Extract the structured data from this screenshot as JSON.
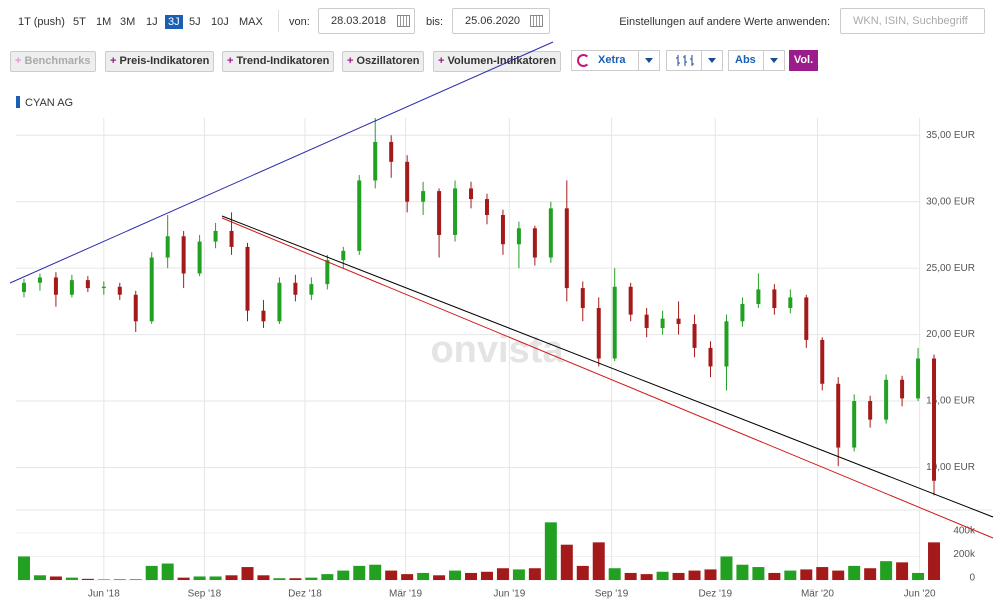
{
  "toolbar": {
    "ranges": [
      "1T (push)",
      "5T",
      "1M",
      "3M",
      "1J",
      "3J",
      "5J",
      "10J",
      "MAX"
    ],
    "active_range": "3J",
    "from_label": "von:",
    "from_date": "28.03.2018",
    "to_label": "bis:",
    "to_date": "25.06.2020",
    "apply_label": "Einstellungen auf andere Werte anwenden:",
    "search_placeholder": "WKN, ISIN, Suchbegriff",
    "buttons": [
      "Benchmarks",
      "Preis-Indikatoren",
      "Trend-Indikatoren",
      "Oszillatoren",
      "Volumen-Indikatoren"
    ],
    "exchange": "Xetra",
    "mode": "Abs",
    "volume_toggle": "Vol."
  },
  "chart_data": {
    "type": "candlestick",
    "legend": "CYAN AG",
    "watermark": "onvista",
    "up_color": "#22a022",
    "down_color": "#a41a1a",
    "legend_color": "#1a5fb4",
    "open": [
      23.2,
      23.9,
      24.3,
      23.0,
      24.1,
      23.5,
      23.6,
      23.0,
      21.0,
      25.8,
      27.4,
      24.6,
      27.0,
      27.8,
      26.6,
      21.8,
      21.0,
      23.9,
      23.0,
      23.8,
      25.6,
      26.3,
      31.6,
      34.5,
      33.0,
      30.0,
      30.8,
      27.5,
      31.0,
      30.2,
      29.0,
      26.8,
      28.0,
      25.8,
      29.5,
      23.5,
      22.0,
      18.2,
      23.6,
      21.5,
      20.5,
      21.2,
      20.8,
      19.0,
      17.6,
      21.0,
      22.3,
      23.4,
      22.0,
      22.8,
      19.6,
      16.3,
      11.5,
      15.0,
      13.6,
      16.6,
      15.2,
      18.2
    ],
    "high": [
      24.2,
      24.6,
      24.7,
      24.5,
      24.4,
      24.0,
      23.9,
      23.3,
      26.2,
      29.0,
      27.8,
      27.5,
      28.4,
      29.2,
      26.9,
      22.6,
      24.3,
      24.5,
      24.3,
      26.0,
      26.6,
      32.0,
      36.3,
      35.0,
      33.5,
      31.5,
      31.0,
      31.6,
      31.5,
      30.6,
      29.4,
      28.5,
      28.2,
      30.0,
      31.6,
      24.0,
      22.8,
      25.0,
      23.9,
      22.0,
      21.8,
      22.5,
      21.5,
      19.5,
      21.5,
      22.8,
      24.6,
      23.8,
      23.4,
      23.0,
      19.8,
      16.8,
      15.5,
      15.4,
      17.0,
      16.9,
      19.0,
      18.5
    ],
    "low": [
      22.8,
      23.3,
      22.1,
      22.8,
      23.2,
      23.0,
      22.6,
      20.2,
      20.8,
      25.0,
      23.5,
      24.4,
      26.5,
      26.0,
      21.0,
      20.5,
      20.8,
      22.5,
      22.6,
      23.4,
      25.0,
      26.0,
      31.0,
      31.8,
      29.2,
      29.0,
      25.8,
      27.0,
      29.5,
      28.3,
      26.0,
      25.0,
      25.2,
      25.4,
      22.5,
      21.0,
      17.6,
      18.0,
      21.0,
      19.8,
      20.0,
      20.0,
      18.3,
      16.8,
      15.8,
      20.6,
      22.0,
      21.5,
      21.6,
      19.0,
      15.8,
      10.1,
      11.2,
      13.0,
      13.3,
      14.6,
      15.0,
      7.9
    ],
    "close": [
      23.9,
      24.3,
      23.0,
      24.1,
      23.5,
      23.6,
      23.0,
      21.0,
      25.8,
      27.4,
      24.6,
      27.0,
      27.8,
      26.6,
      21.8,
      21.0,
      23.9,
      23.0,
      23.8,
      25.6,
      26.3,
      31.6,
      34.5,
      33.0,
      30.0,
      30.8,
      27.5,
      31.0,
      30.2,
      29.0,
      26.8,
      28.0,
      25.8,
      29.5,
      23.5,
      22.0,
      18.2,
      23.6,
      21.5,
      20.5,
      21.2,
      20.8,
      19.0,
      17.6,
      21.0,
      22.3,
      23.4,
      22.0,
      22.8,
      19.6,
      16.3,
      11.5,
      15.0,
      13.6,
      16.6,
      15.2,
      18.2,
      9.0
    ],
    "volume": [
      200000,
      40000,
      30000,
      20000,
      10000,
      5000,
      5000,
      5000,
      120000,
      140000,
      20000,
      30000,
      30000,
      40000,
      110000,
      40000,
      15000,
      15000,
      20000,
      50000,
      80000,
      120000,
      130000,
      80000,
      50000,
      60000,
      40000,
      80000,
      60000,
      70000,
      100000,
      90000,
      100000,
      490000,
      300000,
      120000,
      320000,
      100000,
      60000,
      50000,
      70000,
      60000,
      80000,
      90000,
      200000,
      130000,
      110000,
      60000,
      80000,
      90000,
      110000,
      80000,
      120000,
      100000,
      160000,
      150000,
      60000,
      320000
    ],
    "xlim": [
      -0.5,
      57.5
    ],
    "xticks": [
      {
        "value": 5.0,
        "label": "Jun '18"
      },
      {
        "value": 11.3,
        "label": "Sep '18"
      },
      {
        "value": 17.6,
        "label": "Dez '18"
      },
      {
        "value": 23.9,
        "label": "Mär '19"
      },
      {
        "value": 30.4,
        "label": "Jun '19"
      },
      {
        "value": 36.8,
        "label": "Sep '19"
      },
      {
        "value": 43.3,
        "label": "Dez '19"
      },
      {
        "value": 49.7,
        "label": "Mär '20"
      },
      {
        "value": 56.1,
        "label": "Jun '20"
      }
    ],
    "ylim": [
      6.8,
      36.3
    ],
    "yticks": [
      {
        "value": 10,
        "label": "10,00 EUR"
      },
      {
        "value": 15,
        "label": "15,00 EUR"
      },
      {
        "value": 20,
        "label": "20,00 EUR"
      },
      {
        "value": 25,
        "label": "25,00 EUR"
      },
      {
        "value": 30,
        "label": "30,00 EUR"
      },
      {
        "value": 35,
        "label": "35,00 EUR"
      }
    ],
    "volume_ylim": [
      0,
      510000
    ],
    "volume_ticks": [
      0,
      {
        "value": 200000,
        "label": "200k"
      },
      {
        "value": 400000,
        "label": "400k"
      }
    ],
    "grid": true
  }
}
